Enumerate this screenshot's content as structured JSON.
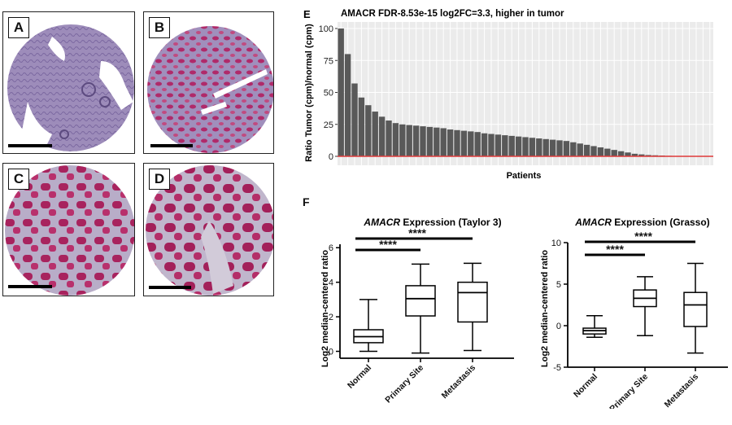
{
  "panels": {
    "A": "A",
    "B": "B",
    "C": "C",
    "D": "D",
    "E": "E",
    "F": "F"
  },
  "colors": {
    "tissue_purple": "#9a87b8",
    "stain_magenta": "#b02a6a",
    "bar_gray": "#595959",
    "grid_bg": "#ebebeb",
    "ref_line": "#e03b3b"
  },
  "chart_data": [
    {
      "type": "bar",
      "title": "AMACR FDR-8.53e-15 log2FC=3.3, higher in tumor",
      "xlabel": "Patients",
      "ylabel": "Ratio Tumor (cpm)/normal (cpm)",
      "ylim": [
        0,
        100
      ],
      "yticks": [
        0,
        25,
        50,
        75,
        100
      ],
      "reference_line": 0,
      "values": [
        100,
        80,
        57,
        46,
        40,
        35,
        31,
        28,
        26,
        25,
        24.5,
        24,
        23.5,
        23,
        22.5,
        22,
        21,
        20.5,
        20,
        19.5,
        19,
        18,
        17.5,
        17,
        16.5,
        16,
        15.5,
        15,
        14.5,
        14,
        13.5,
        13,
        12.5,
        12,
        11,
        10,
        9,
        8,
        7,
        6,
        5,
        4,
        3,
        2,
        1.5,
        1,
        0.8,
        0.6,
        0.4,
        0.3,
        0.2,
        0.15,
        0.1,
        0.1,
        0.05
      ]
    },
    {
      "type": "box",
      "title_italic": "AMACR",
      "title_rest": " Expression (Taylor 3)",
      "ylabel": "Log2 median-centered ratio",
      "ylim": [
        -0.4,
        6.2
      ],
      "yticks": [
        0,
        2,
        4,
        6
      ],
      "categories": [
        "Normal",
        "Primary Site",
        "Metastasis"
      ],
      "boxes": [
        {
          "min": 0.0,
          "q1": 0.5,
          "median": 0.85,
          "q3": 1.25,
          "max": 3.0
        },
        {
          "min": -0.1,
          "q1": 2.05,
          "median": 3.05,
          "q3": 3.8,
          "max": 5.05
        },
        {
          "min": 0.05,
          "q1": 1.7,
          "median": 3.4,
          "q3": 4.0,
          "max": 5.1
        }
      ],
      "significance": [
        {
          "from": 0,
          "to": 1,
          "label": "****"
        },
        {
          "from": 0,
          "to": 2,
          "label": "****"
        }
      ]
    },
    {
      "type": "box",
      "title_italic": "AMACR",
      "title_rest": " Expression (Grasso)",
      "ylabel": "Log2 median-centered ratio",
      "ylim": [
        -5,
        10
      ],
      "yticks": [
        -5,
        0,
        5,
        10
      ],
      "categories": [
        "Normal",
        "Primary Site",
        "Metastasis"
      ],
      "boxes": [
        {
          "min": -1.4,
          "q1": -1.0,
          "median": -0.6,
          "q3": -0.3,
          "max": 1.2
        },
        {
          "min": -1.2,
          "q1": 2.3,
          "median": 3.3,
          "q3": 4.3,
          "max": 5.9
        },
        {
          "min": -3.3,
          "q1": -0.1,
          "median": 2.5,
          "q3": 4.0,
          "max": 7.5
        }
      ],
      "significance": [
        {
          "from": 0,
          "to": 1,
          "label": "****"
        },
        {
          "from": 0,
          "to": 2,
          "label": "****"
        }
      ]
    }
  ]
}
